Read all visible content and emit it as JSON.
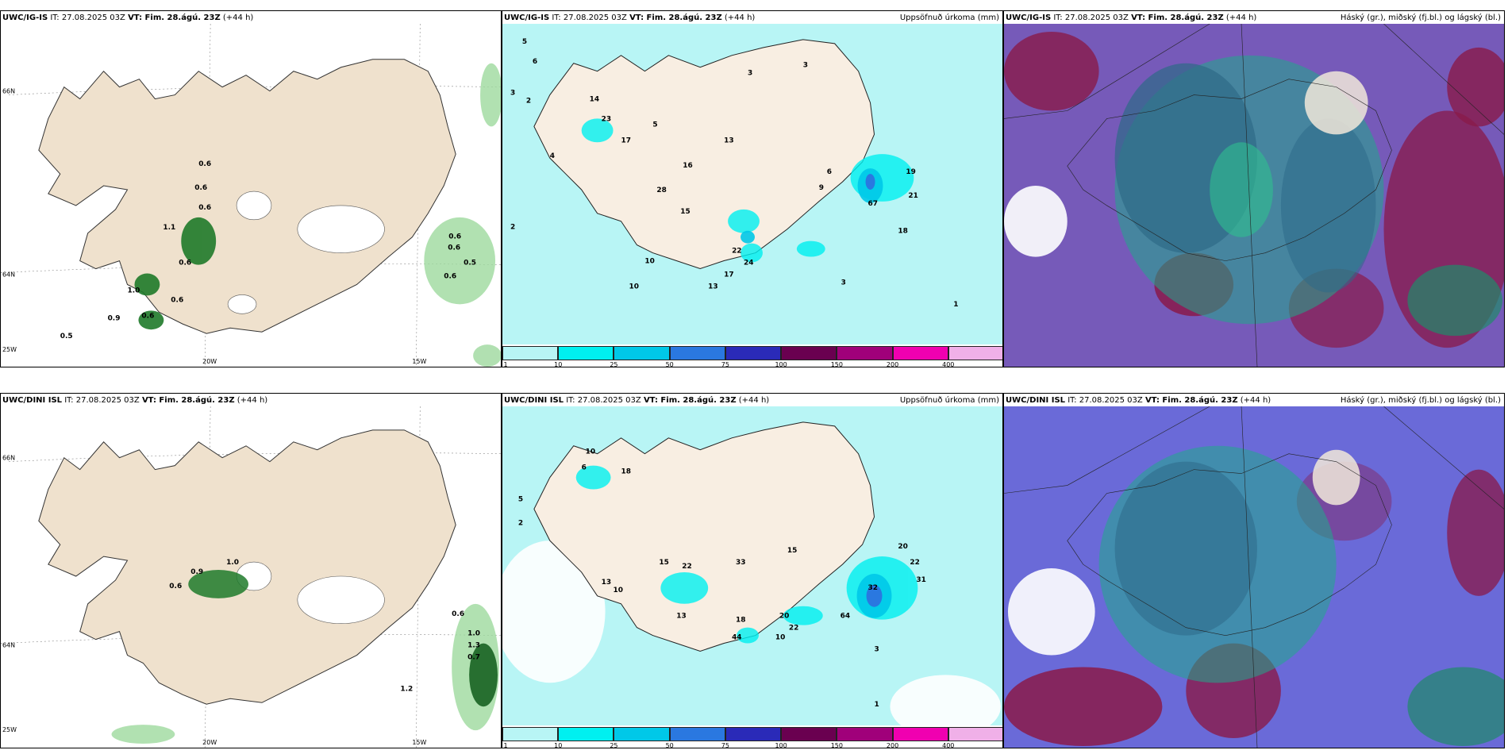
{
  "panels": [
    {
      "model": "UWC/IG-IS",
      "it": "IT: 27.08.2025 03Z",
      "vt": "VT: Fim. 28.ágú. 23Z",
      "lead": "(+44 h)",
      "right": ""
    },
    {
      "model": "UWC/IG-IS",
      "it": "IT: 27.08.2025 03Z",
      "vt": "VT: Fim. 28.ágú. 23Z",
      "lead": "(+44 h)",
      "right": "Uppsöfnuð úrkoma (mm)"
    },
    {
      "model": "UWC/IG-IS",
      "it": "IT: 27.08.2025 03Z",
      "vt": "VT: Fim. 28.ágú. 23Z",
      "lead": "(+44 h)",
      "right": "Háský (gr.), miðský (fj.bl.) og lágský (bl.)"
    },
    {
      "model": "UWC/DINI ISL",
      "it": "IT: 27.08.2025 03Z",
      "vt": "VT: Fim. 28.ágú. 23Z",
      "lead": "(+44 h)",
      "right": ""
    },
    {
      "model": "UWC/DINI ISL",
      "it": "IT: 27.08.2025 03Z",
      "vt": "VT: Fim. 28.ágú. 23Z",
      "lead": "(+44 h)",
      "right": "Uppsöfnuð úrkoma (mm)"
    },
    {
      "model": "UWC/DINI ISL",
      "it": "IT: 27.08.2025 03Z",
      "vt": "VT: Fim. 28.ágú. 23Z",
      "lead": "(+44 h)",
      "right": "Háský (gr.), miðský (fj.bl.) og lágský (bl.)"
    }
  ],
  "axis_labels": {
    "lon1": "20W",
    "lon2": "15W",
    "lat1": "66N",
    "lat2": "64N",
    "lat3": "25W"
  },
  "colorbar": {
    "ticks": [
      "1",
      "10",
      "25",
      "50",
      "75",
      "100",
      "150",
      "200",
      "400"
    ],
    "colors": [
      "#b8f5f5",
      "#00f0f0",
      "#00c8e8",
      "#2a78e0",
      "#2a2ab8",
      "#6a0050",
      "#a0007a",
      "#f000b0",
      "#f0b0e8"
    ]
  },
  "wind_labels_top": [
    "0.6",
    "0.6",
    "0.6",
    "1.1",
    "0.6",
    "1.0",
    "0.6",
    "0.9",
    "0.6",
    "0.5",
    "0.6",
    "0.6",
    "0.5",
    "0.6"
  ],
  "wind_labels_bottom": [
    "0.6",
    "0.9",
    "1.0",
    "1.2",
    "0.6",
    "1.0",
    "1.3",
    "0.7"
  ],
  "precip_labels_top": [
    "5",
    "6",
    "3",
    "2",
    "14",
    "23",
    "17",
    "5",
    "4",
    "13",
    "16",
    "28",
    "15",
    "22",
    "24",
    "17",
    "10",
    "13",
    "10",
    "67",
    "3",
    "3",
    "6",
    "9",
    "19",
    "21",
    "18",
    "3",
    "1",
    "2"
  ],
  "precip_labels_bottom": [
    "6",
    "10",
    "18",
    "15",
    "22",
    "13",
    "33",
    "20",
    "22",
    "10",
    "44",
    "18",
    "13",
    "10",
    "15",
    "20",
    "22",
    "31",
    "32",
    "64",
    "5",
    "2",
    "1",
    "3"
  ]
}
